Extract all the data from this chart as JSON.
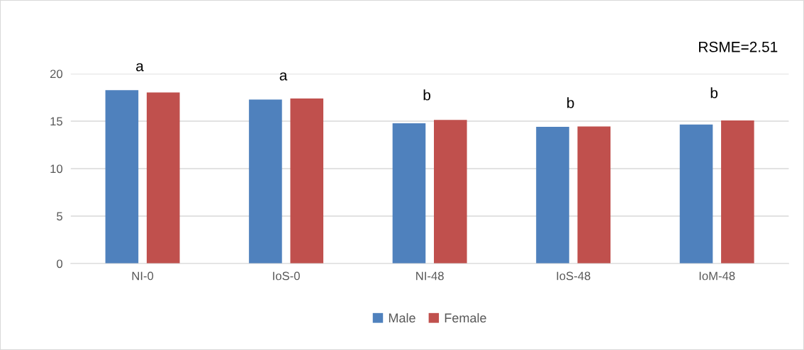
{
  "chart_data": {
    "type": "bar",
    "categories": [
      "NI-0",
      "IoS-0",
      "NI-48",
      "IoS-48",
      "IoM-48"
    ],
    "series": [
      {
        "name": "Male",
        "color": "#4f81bd",
        "values": [
          18.27,
          17.28,
          14.77,
          14.4,
          14.65
        ]
      },
      {
        "name": "Female",
        "color": "#c0504d",
        "values": [
          18.03,
          17.39,
          15.13,
          14.43,
          15.08
        ]
      }
    ],
    "ylim": [
      0,
      20
    ],
    "yticks": [
      0,
      5,
      10,
      15,
      20
    ],
    "grid": "y",
    "legend": "bottom",
    "annotations": [
      "RSME=2.51",
      "a",
      "a",
      "b",
      "b",
      "b"
    ]
  }
}
